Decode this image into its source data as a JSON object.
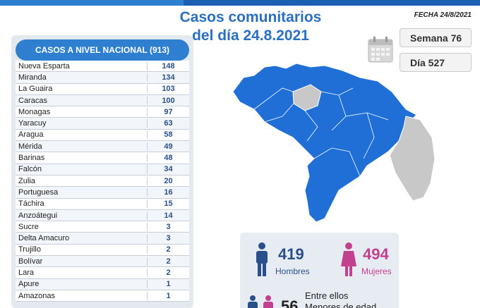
{
  "header": {
    "title_line1": "Casos comunitarios",
    "title_line2": "del día 24.8.2021",
    "fecha": "FECHA 24/8/2021",
    "semana": "Semana 76",
    "dia": "Día 527"
  },
  "table": {
    "header": "CASOS A NIVEL NACIONAL (913)",
    "rows": [
      {
        "name": "Nueva Esparta",
        "value": "148"
      },
      {
        "name": "Miranda",
        "value": "134"
      },
      {
        "name": "La Guaira",
        "value": "103"
      },
      {
        "name": "Caracas",
        "value": "100"
      },
      {
        "name": "Monagas",
        "value": "97"
      },
      {
        "name": "Yaracuy",
        "value": "63"
      },
      {
        "name": "Aragua",
        "value": "58"
      },
      {
        "name": "Mérida",
        "value": "49"
      },
      {
        "name": "Barinas",
        "value": "48"
      },
      {
        "name": "Falcón",
        "value": "34"
      },
      {
        "name": "Zulia",
        "value": "20"
      },
      {
        "name": "Portuguesa",
        "value": "16"
      },
      {
        "name": "Táchira",
        "value": "15"
      },
      {
        "name": "Anzoátegui",
        "value": "14"
      },
      {
        "name": "Sucre",
        "value": "3"
      },
      {
        "name": "Delta Amacuro",
        "value": "3"
      },
      {
        "name": "Trujillo",
        "value": "2"
      },
      {
        "name": "Bolívar",
        "value": "2"
      },
      {
        "name": "Lara",
        "value": "2"
      },
      {
        "name": "Apure",
        "value": "1"
      },
      {
        "name": "Amazonas",
        "value": "1"
      }
    ]
  },
  "stats": {
    "hombres_count": "419",
    "hombres_label": "Hombres",
    "mujeres_count": "494",
    "mujeres_label": "Mujeres",
    "entre_label": "Entre ellos",
    "menores_count": "56",
    "menores_label": "Menores de edad"
  },
  "colors": {
    "accent_blue": "#2f7fd0",
    "map_blue": "#1f6fd6",
    "map_gray": "#c8c8c8",
    "male": "#2b4f8a",
    "female": "#c2408e"
  }
}
